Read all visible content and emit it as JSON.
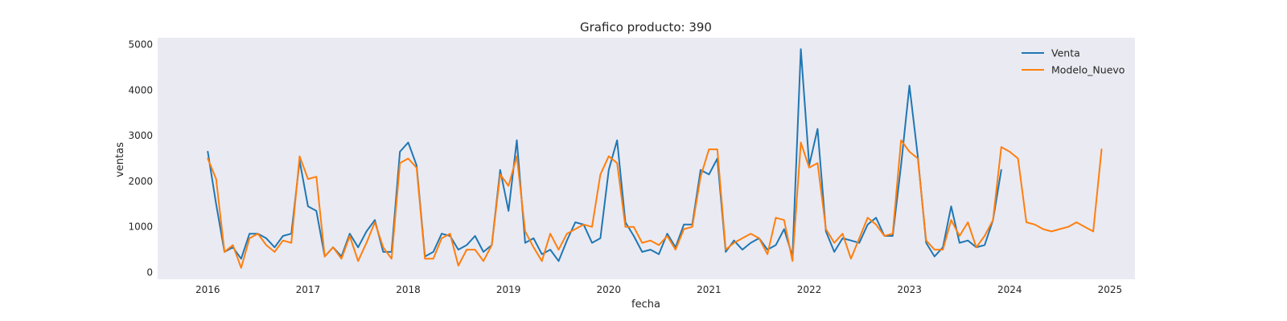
{
  "chart_data": {
    "type": "line",
    "title": "Grafico producto: 390",
    "xlabel": "fecha",
    "ylabel": "ventas",
    "xlim": [
      "2015-07-01",
      "2025-04-01"
    ],
    "ylim": [
      -150,
      5150
    ],
    "x_ticks": [
      "2016",
      "2017",
      "2018",
      "2019",
      "2020",
      "2021",
      "2022",
      "2023",
      "2024",
      "2025"
    ],
    "y_ticks": [
      0,
      1000,
      2000,
      3000,
      4000,
      5000
    ],
    "grid": false,
    "legend_position": "top-right",
    "colors": {
      "Venta": "#1f77b4",
      "Modelo_Nuevo": "#ff7f0e",
      "plot_bg": "#eaeaf2"
    },
    "x_start": "2016-01",
    "x_frequency": "monthly",
    "series": [
      {
        "name": "Venta",
        "values": [
          2650,
          1500,
          450,
          550,
          300,
          850,
          850,
          750,
          550,
          800,
          850,
          2450,
          1450,
          1350,
          350,
          550,
          350,
          850,
          550,
          900,
          1150,
          450,
          450,
          2650,
          2850,
          2350,
          350,
          450,
          850,
          800,
          500,
          600,
          800,
          450,
          600,
          2250,
          1350,
          2900,
          650,
          750,
          400,
          500,
          250,
          700,
          1100,
          1050,
          650,
          750,
          2250,
          2900,
          1100,
          800,
          450,
          500,
          400,
          850,
          550,
          1050,
          1050,
          2250,
          2150,
          2500,
          450,
          700,
          500,
          650,
          750,
          500,
          600,
          950,
          350,
          4900,
          2350,
          3150,
          900,
          450,
          750,
          700,
          650,
          1050,
          1200,
          800,
          800,
          2350,
          4100,
          2550,
          650,
          350,
          550,
          1450,
          650,
          700,
          550,
          600,
          1150,
          2250
        ]
      },
      {
        "name": "Modelo_Nuevo",
        "values": [
          2500,
          2050,
          450,
          600,
          100,
          750,
          850,
          600,
          450,
          700,
          650,
          2550,
          2050,
          2100,
          350,
          550,
          300,
          800,
          250,
          650,
          1100,
          550,
          300,
          2400,
          2500,
          2300,
          300,
          300,
          750,
          850,
          150,
          500,
          500,
          250,
          600,
          2150,
          1900,
          2550,
          900,
          550,
          250,
          850,
          500,
          850,
          950,
          1050,
          1000,
          2150,
          2550,
          2400,
          1000,
          1000,
          650,
          700,
          600,
          800,
          500,
          950,
          1000,
          2100,
          2700,
          2700,
          500,
          650,
          750,
          850,
          750,
          400,
          1200,
          1150,
          250,
          2850,
          2300,
          2400,
          950,
          650,
          850,
          300,
          750,
          1200,
          1050,
          800,
          850,
          2900,
          2650,
          2500,
          700,
          500,
          500,
          1150,
          800,
          1100,
          550,
          800,
          1150,
          2750,
          2650,
          2500,
          1100,
          1050,
          950,
          900,
          950,
          1000,
          1100,
          1000,
          900,
          2700
        ]
      }
    ]
  }
}
